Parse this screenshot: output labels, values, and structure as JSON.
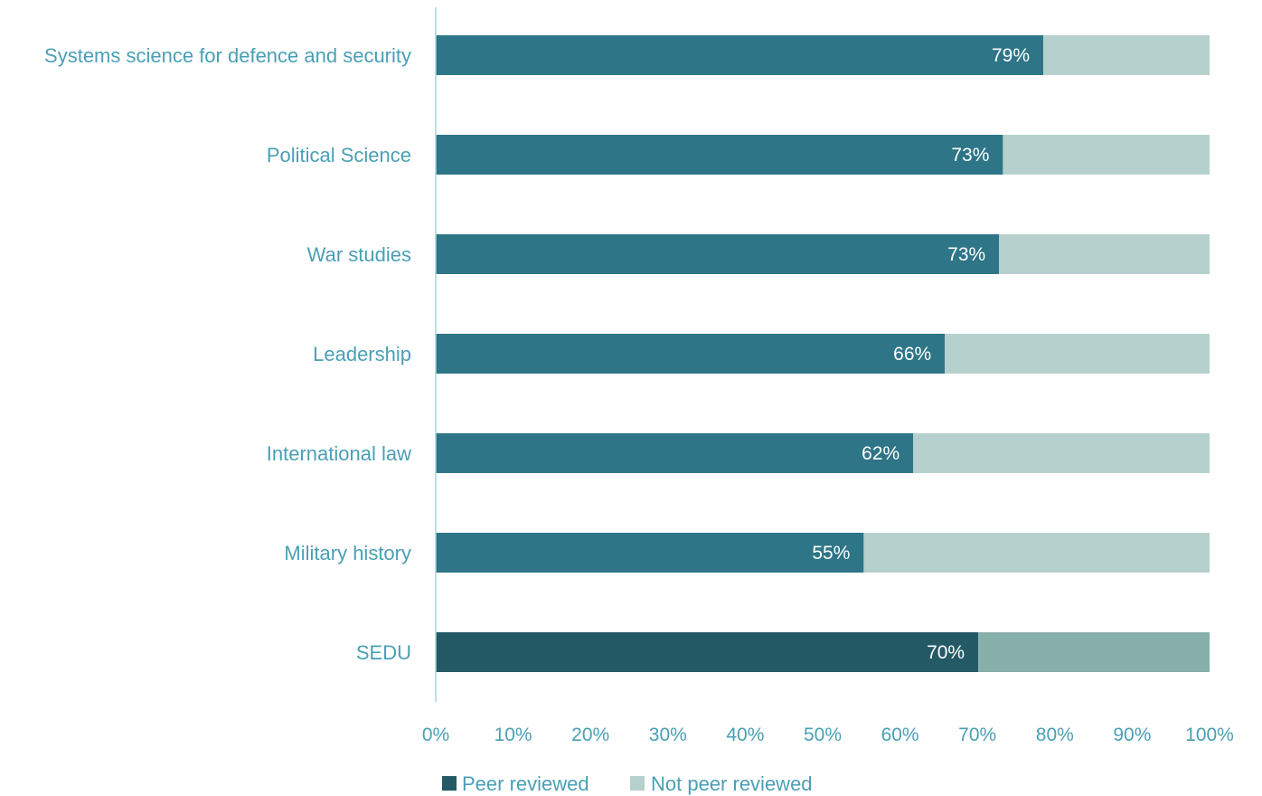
{
  "chart_data": {
    "type": "bar",
    "orientation": "horizontal",
    "stacked": true,
    "categories": [
      "Systems science for defence and security",
      "Political Science",
      "War studies",
      "Leadership",
      "International law",
      "Military history",
      "SEDU"
    ],
    "series": [
      {
        "name": "Peer reviewed",
        "values": [
          78.5,
          73.3,
          72.8,
          65.8,
          61.7,
          55.3,
          70.1
        ],
        "data_labels": [
          "79%",
          "73%",
          "73%",
          "66%",
          "62%",
          "55%",
          "70%"
        ]
      },
      {
        "name": "Not peer reviewed",
        "values": [
          21.5,
          26.7,
          27.2,
          34.2,
          38.3,
          44.7,
          29.9
        ]
      }
    ],
    "xlim": [
      0,
      100
    ],
    "x_ticks": [
      "0%",
      "10%",
      "20%",
      "30%",
      "40%",
      "50%",
      "60%",
      "70%",
      "80%",
      "90%",
      "100%"
    ],
    "title": "",
    "xlabel": "",
    "ylabel": "",
    "grid": false,
    "legend_position": "bottom",
    "colors": {
      "peer_reviewed": "#2e7587",
      "not_peer_reviewed": "#b6d0cd",
      "highlight_peer_reviewed": "#235a66",
      "highlight_not_peer_reviewed": "#88b0ab",
      "text": "#4a9fb5",
      "axis": "#a9d3de"
    },
    "highlight_category": "SEDU"
  }
}
